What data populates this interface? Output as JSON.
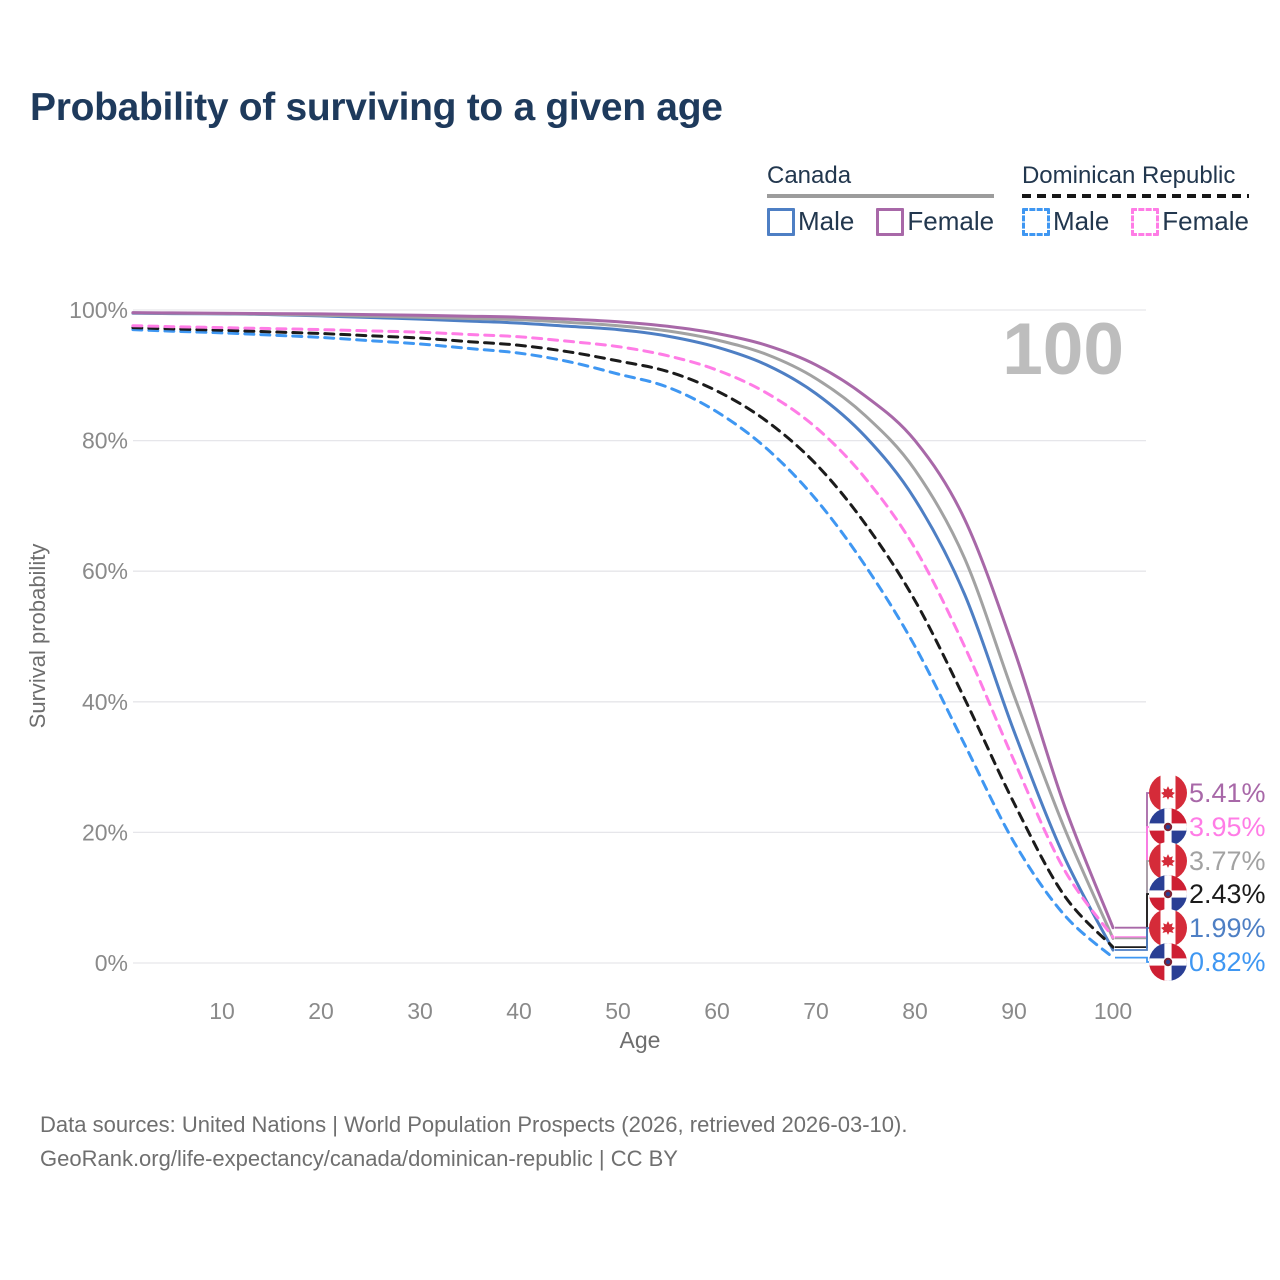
{
  "title": "Probability of surviving to a given age",
  "watermark_label": "100",
  "legend": {
    "canada": {
      "label": "Canada",
      "male": "Male",
      "female": "Female"
    },
    "dominican_republic": {
      "label": "Dominican Republic",
      "male": "Male",
      "female": "Female"
    }
  },
  "chart_data": {
    "type": "line",
    "title": "Probability of surviving to a given age",
    "xlabel": "Age",
    "ylabel": "Survival probability",
    "xlim": [
      1,
      100
    ],
    "ylim": [
      0,
      100
    ],
    "grid": "horizontal",
    "legend_position": "top-right",
    "hover_age": 100,
    "x_ticks": [
      10,
      20,
      30,
      40,
      50,
      60,
      70,
      80,
      90,
      100
    ],
    "y_tick_values": [
      0,
      20,
      40,
      60,
      80,
      100
    ],
    "y_tick_labels": [
      "0%",
      "20%",
      "40%",
      "60%",
      "80%",
      "100%"
    ],
    "x": [
      1,
      5,
      10,
      15,
      20,
      25,
      30,
      35,
      40,
      45,
      50,
      55,
      60,
      65,
      70,
      75,
      80,
      85,
      90,
      95,
      100
    ],
    "series": [
      {
        "name": "Canada — Female",
        "country": "canada",
        "sex": "Female",
        "line_style": "solid",
        "color": "#a868a8",
        "end_label": "5.41%",
        "values": [
          99.6,
          99.55,
          99.5,
          99.45,
          99.4,
          99.3,
          99.2,
          99.05,
          98.9,
          98.6,
          98.2,
          97.5,
          96.4,
          94.6,
          91.6,
          86.8,
          80.0,
          68.0,
          48.0,
          24.5,
          5.41
        ]
      },
      {
        "name": "Dominican Republic — Female",
        "country": "dominican-republic",
        "sex": "Female",
        "line_style": "dashed",
        "color": "#ff7ce6",
        "end_label": "3.95%",
        "values": [
          97.6,
          97.45,
          97.3,
          97.15,
          97.0,
          96.8,
          96.6,
          96.25,
          95.9,
          95.2,
          94.4,
          93.0,
          90.8,
          87.3,
          82.0,
          74.2,
          63.5,
          48.5,
          31.0,
          14.5,
          3.95
        ]
      },
      {
        "name": "Canada — Both sexes",
        "country": "canada",
        "sex": "Both sexes",
        "line_style": "solid",
        "color": "#a2a2a2",
        "end_label": "3.77%",
        "values": [
          99.55,
          99.5,
          99.45,
          99.35,
          99.2,
          99.05,
          98.9,
          98.7,
          98.5,
          98.1,
          97.6,
          96.8,
          95.4,
          93.2,
          89.5,
          83.8,
          75.5,
          62.0,
          41.0,
          21.0,
          3.77
        ]
      },
      {
        "name": "Dominican Republic — Both sexes",
        "country": "dominican-republic",
        "sex": "Both sexes",
        "line_style": "dashed",
        "color": "#1b1b1b",
        "end_label": "2.43%",
        "values": [
          97.3,
          97.1,
          96.9,
          96.65,
          96.4,
          96.05,
          95.7,
          95.15,
          94.6,
          93.6,
          92.2,
          90.6,
          87.6,
          83.0,
          76.4,
          67.2,
          55.5,
          40.5,
          24.5,
          10.5,
          2.43
        ]
      },
      {
        "name": "Canada — Male",
        "country": "canada",
        "sex": "Male",
        "line_style": "solid",
        "color": "#4e7fc4",
        "end_label": "1.99%",
        "values": [
          99.5,
          99.45,
          99.4,
          99.3,
          99.1,
          98.85,
          98.6,
          98.3,
          98.0,
          97.5,
          97.0,
          96.0,
          94.3,
          91.6,
          87.2,
          80.6,
          71.0,
          56.5,
          35.5,
          16.5,
          1.99
        ]
      },
      {
        "name": "Dominican Republic — Male",
        "country": "dominican-republic",
        "sex": "Male",
        "line_style": "dashed",
        "color": "#3f97f2",
        "end_label": "0.82%",
        "values": [
          97.0,
          96.75,
          96.5,
          96.15,
          95.8,
          95.3,
          94.8,
          94.1,
          93.4,
          92.1,
          90.2,
          88.2,
          84.4,
          78.8,
          71.0,
          60.8,
          48.5,
          33.5,
          18.5,
          7.5,
          0.82
        ]
      }
    ]
  },
  "colors": {
    "title": "#1e3a5c",
    "axis_tick_text": "#8a8a8a",
    "axis_label_text": "#6e6e6e",
    "gridline": "#e6e6ea",
    "watermark": "#bdbdbd",
    "canada_flag_red": "#d52b39",
    "dr_flag_blue": "#2a3f94",
    "dr_flag_red": "#ce1f33",
    "dr_emblem_outer": "#7d2335",
    "dr_emblem_inner": "#2a3f94"
  },
  "footer": {
    "line1": "Data sources: United Nations | World Population Prospects (2026, retrieved 2026-03-10).",
    "line2": "GeoRank.org/life-expectancy/canada/dominican-republic | CC BY"
  }
}
